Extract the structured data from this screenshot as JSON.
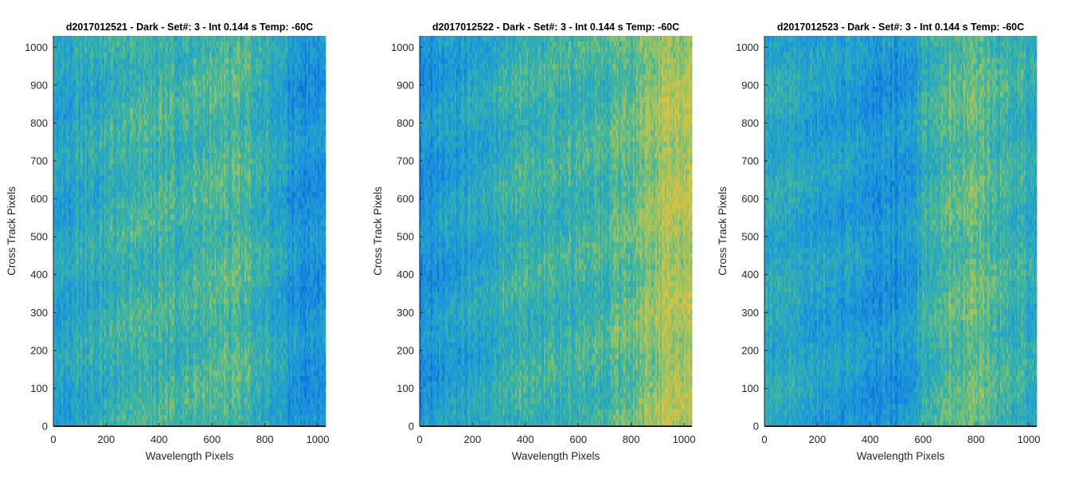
{
  "colormap": {
    "name": "parula",
    "stops": [
      "#0f6fd6",
      "#1a8fe0",
      "#25a6c6",
      "#44b69a",
      "#8cc26a",
      "#c8c24c",
      "#e6c33a"
    ]
  },
  "chart_data": [
    {
      "type": "heatmap",
      "title": "d2017012521 - Dark - Set#: 3 - Int 0.144 s Temp: -60C",
      "xlabel": "Wavelength Pixels",
      "ylabel": "Cross Track Pixels",
      "xlim": [
        0,
        1030
      ],
      "ylim": [
        0,
        1030
      ],
      "xticks": [
        0,
        200,
        400,
        600,
        800,
        1000
      ],
      "yticks": [
        0,
        100,
        200,
        300,
        400,
        500,
        600,
        700,
        800,
        900,
        1000
      ],
      "intensity_profile_x": [
        0,
        100,
        200,
        300,
        400,
        500,
        600,
        700,
        800,
        900,
        1030
      ],
      "intensity_profile": [
        0.3,
        0.36,
        0.38,
        0.44,
        0.46,
        0.46,
        0.5,
        0.5,
        0.4,
        0.22,
        0.18
      ]
    },
    {
      "type": "heatmap",
      "title": "d2017012522 - Dark - Set#: 3 - Int 0.144 s Temp: -60C",
      "xlabel": "Wavelength Pixels",
      "ylabel": "Cross Track Pixels",
      "xlim": [
        0,
        1030
      ],
      "ylim": [
        0,
        1030
      ],
      "xticks": [
        0,
        200,
        400,
        600,
        800,
        1000
      ],
      "yticks": [
        0,
        100,
        200,
        300,
        400,
        500,
        600,
        700,
        800,
        900,
        1000
      ],
      "intensity_profile_x": [
        0,
        100,
        200,
        300,
        400,
        500,
        600,
        700,
        800,
        900,
        1030
      ],
      "intensity_profile": [
        0.18,
        0.24,
        0.32,
        0.4,
        0.44,
        0.44,
        0.44,
        0.48,
        0.56,
        0.72,
        0.8
      ]
    },
    {
      "type": "heatmap",
      "title": "d2017012523 - Dark - Set#: 3 - Int 0.144 s Temp: -60C",
      "xlabel": "Wavelength Pixels",
      "ylabel": "Cross Track Pixels",
      "xlim": [
        0,
        1030
      ],
      "ylim": [
        0,
        1030
      ],
      "xticks": [
        0,
        200,
        400,
        600,
        800,
        1000
      ],
      "yticks": [
        0,
        100,
        200,
        300,
        400,
        500,
        600,
        700,
        800,
        900,
        1000
      ],
      "intensity_profile_x": [
        0,
        100,
        200,
        300,
        400,
        500,
        550,
        600,
        700,
        800,
        900,
        1030
      ],
      "intensity_profile": [
        0.34,
        0.36,
        0.32,
        0.26,
        0.22,
        0.18,
        0.22,
        0.4,
        0.56,
        0.56,
        0.46,
        0.4
      ]
    }
  ]
}
